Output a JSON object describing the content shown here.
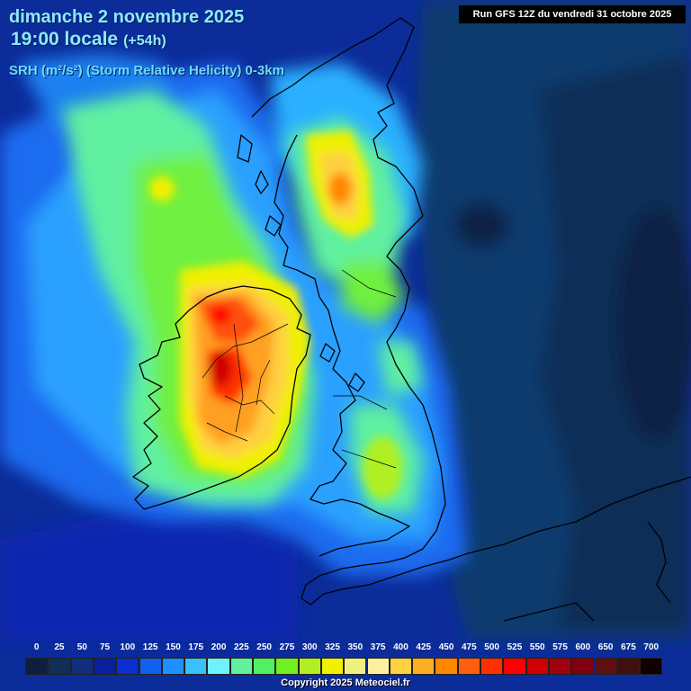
{
  "header": {
    "date": "dimanche 2 novembre 2025",
    "time": "19:00 locale",
    "lead": "(+54h)",
    "parameter": "SRH (m²/s²) (Storm Relative Helicity) 0-3km",
    "run": "Run GFS 12Z du vendredi 31 octobre 2025"
  },
  "legend": {
    "ticks": [
      "0",
      "25",
      "50",
      "75",
      "100",
      "125",
      "150",
      "175",
      "200",
      "225",
      "250",
      "275",
      "300",
      "325",
      "350",
      "375",
      "400",
      "425",
      "450",
      "475",
      "500",
      "525",
      "550",
      "575",
      "600",
      "650",
      "675",
      "700"
    ],
    "colors": [
      "#0d1f3c",
      "#0f2f5a",
      "#102e7c",
      "#0a1f9c",
      "#0a2fd0",
      "#1060f0",
      "#1e90ff",
      "#38c0ff",
      "#6ef2ff",
      "#60f0a0",
      "#50f060",
      "#70f020",
      "#b0f020",
      "#f0f000",
      "#f0f080",
      "#fff0a0",
      "#ffd040",
      "#ffb020",
      "#ff8800",
      "#ff6010",
      "#ff3000",
      "#ff0000",
      "#d00000",
      "#a00010",
      "#800010",
      "#601010",
      "#401010",
      "#100000"
    ]
  },
  "copyright": "Copyright 2025 Meteociel.fr"
}
